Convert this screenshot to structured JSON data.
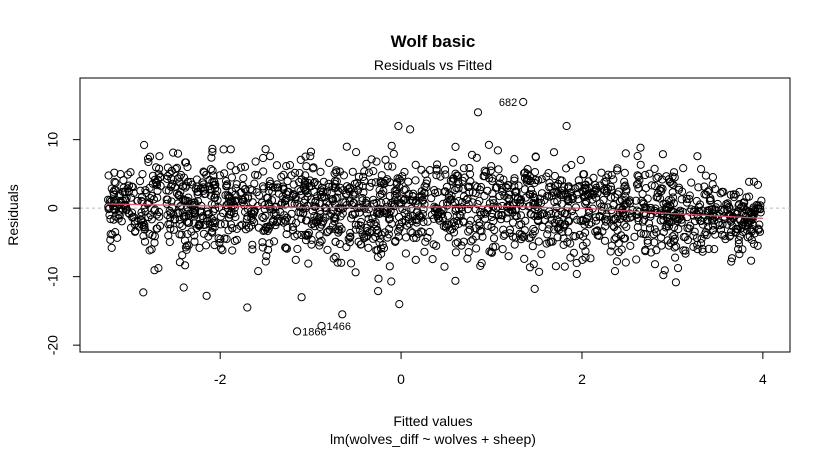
{
  "chart_data": {
    "type": "scatter",
    "title": "Wolf basic",
    "subtitle": "Residuals vs Fitted",
    "xlabel": "Fitted values",
    "xlabel_sub": "lm(wolves_diff ~ wolves + sheep)",
    "ylabel": "Residuals",
    "xlim": [
      -3.55,
      4.3
    ],
    "ylim": [
      -21.0,
      19.0
    ],
    "x_ticks": [
      -2,
      0,
      2,
      4
    ],
    "y_ticks": [
      -20,
      -10,
      0,
      10
    ],
    "x_tick_labels": [
      "-2",
      "0",
      "2",
      "4"
    ],
    "y_tick_labels": [
      "-20",
      "-10",
      "0",
      "10"
    ],
    "zero_line": {
      "y": 0,
      "color": "#bbbbbb",
      "style": "dotted"
    },
    "smooth_line": {
      "color": "#df536b",
      "x": [
        -3.25,
        -2.0,
        -1.0,
        0.0,
        1.0,
        2.0,
        3.0,
        4.0
      ],
      "y": [
        0.6,
        0.3,
        0.1,
        0.1,
        0.3,
        0.0,
        -0.8,
        -1.5
      ]
    },
    "point_cloud": {
      "x_range": [
        -3.25,
        4.0
      ],
      "typical_residual_range": [
        -10,
        10
      ]
    },
    "outliers": [
      {
        "label": "682",
        "x": 1.35,
        "y": 15.5
      },
      {
        "label": "1866",
        "x": -1.15,
        "y": -18.0
      },
      {
        "label": "1466",
        "x": -0.88,
        "y": -17.2
      }
    ],
    "extra_points": [
      {
        "x": 0.85,
        "y": 14.0
      },
      {
        "x": 1.83,
        "y": 12.0
      },
      {
        "x": -0.03,
        "y": 12.0
      },
      {
        "x": 0.1,
        "y": 11.5
      },
      {
        "x": -0.65,
        "y": -15.5
      },
      {
        "x": -1.7,
        "y": -14.5
      },
      {
        "x": -0.02,
        "y": -14.0
      },
      {
        "x": -2.85,
        "y": -12.3
      },
      {
        "x": -2.15,
        "y": -12.8
      },
      {
        "x": -1.1,
        "y": -13.0
      },
      {
        "x": 0.6,
        "y": -10.6
      },
      {
        "x": -0.25,
        "y": -10.3
      },
      {
        "x": 2.6,
        "y": -7.5
      },
      {
        "x": 3.65,
        "y": -7.8
      },
      {
        "x": -3.2,
        "y": -5.8
      },
      {
        "x": 3.95,
        "y": -3.0
      },
      {
        "x": 3.9,
        "y": -1.0
      }
    ]
  }
}
